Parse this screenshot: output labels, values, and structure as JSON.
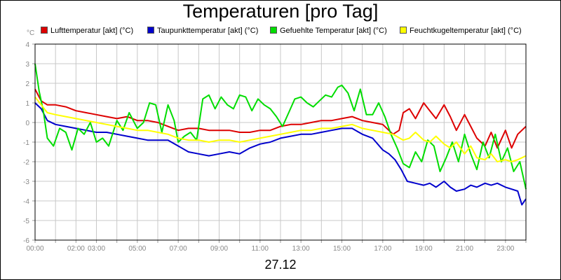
{
  "chart_data": {
    "type": "line",
    "title": "Temperaturen [pro Tag]",
    "unit_label": "°C",
    "date_label": "27.12",
    "ylim": [
      -6,
      4
    ],
    "yticks": [
      4,
      3,
      2,
      1,
      0,
      -1,
      -2,
      -3,
      -4,
      -5,
      -6
    ],
    "xlim": [
      0,
      24
    ],
    "xticks": [
      {
        "h": 0,
        "label": "00:00"
      },
      {
        "h": 2,
        "label": "02:00"
      },
      {
        "h": 3,
        "label": "03:00"
      },
      {
        "h": 5,
        "label": "05:00"
      },
      {
        "h": 7,
        "label": "07:00"
      },
      {
        "h": 9,
        "label": "09:00"
      },
      {
        "h": 11,
        "label": "11:00"
      },
      {
        "h": 13,
        "label": "13:00"
      },
      {
        "h": 15,
        "label": "15:00"
      },
      {
        "h": 17,
        "label": "17:00"
      },
      {
        "h": 19,
        "label": "19:00"
      },
      {
        "h": 21,
        "label": "21:00"
      },
      {
        "h": 23,
        "label": "23:00"
      }
    ],
    "grid": true,
    "legend_position": "top",
    "series": [
      {
        "name": "Lufttemperatur [akt] (°C)",
        "color": "#dd0000",
        "x": [
          0,
          0.3,
          0.6,
          1,
          1.5,
          2,
          2.5,
          3,
          3.5,
          4,
          4.5,
          5,
          5.5,
          6,
          6.5,
          7,
          7.5,
          8,
          8.5,
          9,
          9.5,
          10,
          10.5,
          11,
          11.5,
          12,
          12.5,
          13,
          13.5,
          14,
          14.5,
          15,
          15.5,
          16,
          16.5,
          17,
          17.5,
          17.8,
          18,
          18.3,
          18.6,
          19,
          19.3,
          19.6,
          20,
          20.3,
          20.6,
          21,
          21.3,
          21.6,
          22,
          22.3,
          22.6,
          23,
          23.3,
          23.6,
          24
        ],
        "y": [
          1.7,
          1.1,
          0.9,
          0.9,
          0.8,
          0.6,
          0.5,
          0.4,
          0.3,
          0.2,
          0.3,
          0.1,
          0.1,
          0.0,
          -0.2,
          -0.4,
          -0.3,
          -0.3,
          -0.4,
          -0.4,
          -0.4,
          -0.5,
          -0.5,
          -0.4,
          -0.4,
          -0.2,
          -0.1,
          -0.1,
          0.0,
          0.1,
          0.1,
          0.2,
          0.3,
          0.1,
          0.0,
          -0.1,
          -0.6,
          -0.4,
          0.5,
          0.7,
          0.2,
          1.0,
          0.6,
          0.2,
          0.9,
          0.3,
          -0.4,
          0.4,
          -0.2,
          -0.8,
          -1.2,
          -0.5,
          -1.3,
          -0.4,
          -1.3,
          -0.6,
          -0.2
        ]
      },
      {
        "name": "Taupunkttemperatur [akt] (°C)",
        "color": "#0000cc",
        "x": [
          0,
          0.3,
          0.6,
          1,
          1.5,
          2,
          2.5,
          3,
          3.5,
          4,
          4.5,
          5,
          5.5,
          6,
          6.5,
          7,
          7.5,
          8,
          8.5,
          9,
          9.5,
          10,
          10.5,
          11,
          11.5,
          12,
          12.5,
          13,
          13.5,
          14,
          14.5,
          15,
          15.5,
          16,
          16.5,
          17,
          17.3,
          17.6,
          17.9,
          18.2,
          18.6,
          19,
          19.3,
          19.6,
          20,
          20.3,
          20.6,
          21,
          21.3,
          21.6,
          22,
          22.3,
          22.6,
          23,
          23.3,
          23.6,
          23.8,
          24
        ],
        "y": [
          1.0,
          0.7,
          0.1,
          -0.1,
          -0.2,
          -0.3,
          -0.4,
          -0.5,
          -0.5,
          -0.6,
          -0.7,
          -0.8,
          -0.9,
          -0.9,
          -0.9,
          -1.2,
          -1.5,
          -1.6,
          -1.7,
          -1.6,
          -1.5,
          -1.6,
          -1.3,
          -1.1,
          -1.0,
          -0.8,
          -0.7,
          -0.6,
          -0.6,
          -0.5,
          -0.4,
          -0.3,
          -0.3,
          -0.6,
          -0.8,
          -1.4,
          -1.6,
          -1.9,
          -2.4,
          -3.0,
          -3.1,
          -3.2,
          -3.1,
          -3.3,
          -3.0,
          -3.3,
          -3.5,
          -3.4,
          -3.2,
          -3.3,
          -3.1,
          -3.2,
          -3.1,
          -3.3,
          -3.4,
          -3.5,
          -4.2,
          -3.9
        ]
      },
      {
        "name": "Gefuehlte Temperatur [akt] (°C)",
        "color": "#00dd00",
        "x": [
          0,
          0.2,
          0.4,
          0.6,
          0.9,
          1.2,
          1.5,
          1.8,
          2.1,
          2.4,
          2.7,
          3,
          3.3,
          3.6,
          4,
          4.3,
          4.6,
          5,
          5.3,
          5.6,
          5.9,
          6.2,
          6.5,
          6.8,
          7,
          7.3,
          7.6,
          7.9,
          8.2,
          8.5,
          8.8,
          9.1,
          9.4,
          9.7,
          10,
          10.3,
          10.6,
          10.9,
          11.2,
          11.5,
          11.8,
          12.1,
          12.4,
          12.7,
          13,
          13.3,
          13.6,
          13.9,
          14.2,
          14.5,
          14.8,
          15,
          15.3,
          15.6,
          15.9,
          16.2,
          16.5,
          16.8,
          17.1,
          17.4,
          17.7,
          18,
          18.3,
          18.6,
          18.9,
          19.2,
          19.5,
          19.8,
          20.1,
          20.4,
          20.7,
          21,
          21.3,
          21.6,
          21.9,
          22.2,
          22.5,
          22.8,
          23.1,
          23.4,
          23.7,
          24
        ],
        "y": [
          3.0,
          1.6,
          0.6,
          -0.8,
          -1.2,
          -0.3,
          -0.5,
          -1.4,
          -0.3,
          -0.6,
          0.0,
          -1.0,
          -0.8,
          -1.2,
          0.1,
          -0.4,
          0.5,
          -0.3,
          0.0,
          1.0,
          0.9,
          -0.5,
          0.9,
          0.1,
          -1.0,
          -0.7,
          -0.5,
          -0.9,
          1.2,
          1.4,
          0.7,
          1.3,
          0.9,
          0.7,
          1.4,
          1.3,
          0.6,
          1.2,
          0.9,
          0.7,
          0.3,
          -0.2,
          0.5,
          1.2,
          1.3,
          1.0,
          0.8,
          1.1,
          1.4,
          1.3,
          1.8,
          1.9,
          1.5,
          0.6,
          1.7,
          0.4,
          0.4,
          1.0,
          0.3,
          -0.6,
          -1.3,
          -2.1,
          -2.3,
          -1.5,
          -2.0,
          -0.9,
          -1.2,
          -2.5,
          -1.8,
          -1.0,
          -2.0,
          -0.6,
          -1.6,
          -2.4,
          -1.0,
          -1.8,
          -0.6,
          -2.0,
          -1.3,
          -2.5,
          -2.0,
          -3.4
        ]
      },
      {
        "name": "Feuchtkugeltemperatur [akt] (°C)",
        "color": "#ffff00",
        "x": [
          0,
          0.3,
          0.6,
          1,
          1.5,
          2,
          2.5,
          3,
          3.5,
          4,
          4.5,
          5,
          5.5,
          6,
          6.5,
          7,
          7.5,
          8,
          8.5,
          9,
          9.5,
          10,
          10.5,
          11,
          11.5,
          12,
          12.5,
          13,
          13.5,
          14,
          14.5,
          15,
          15.5,
          16,
          16.5,
          17,
          17.5,
          18,
          18.3,
          18.6,
          19,
          19.3,
          19.6,
          20,
          20.3,
          20.6,
          21,
          21.3,
          21.6,
          22,
          22.3,
          22.6,
          23,
          23.3,
          23.6,
          24
        ],
        "y": [
          1.3,
          0.9,
          0.5,
          0.4,
          0.3,
          0.2,
          0.1,
          0.0,
          -0.1,
          -0.2,
          -0.3,
          -0.4,
          -0.4,
          -0.5,
          -0.6,
          -0.8,
          -0.9,
          -0.9,
          -1.0,
          -0.9,
          -0.9,
          -1.0,
          -0.9,
          -0.8,
          -0.7,
          -0.6,
          -0.5,
          -0.4,
          -0.4,
          -0.3,
          -0.3,
          -0.2,
          -0.1,
          -0.3,
          -0.4,
          -0.5,
          -0.6,
          -0.9,
          -0.8,
          -0.5,
          -0.9,
          -1.0,
          -0.7,
          -1.1,
          -1.3,
          -1.0,
          -1.6,
          -1.2,
          -1.8,
          -1.9,
          -1.6,
          -2.0,
          -1.9,
          -2.0,
          -1.9,
          -1.7
        ]
      }
    ]
  }
}
